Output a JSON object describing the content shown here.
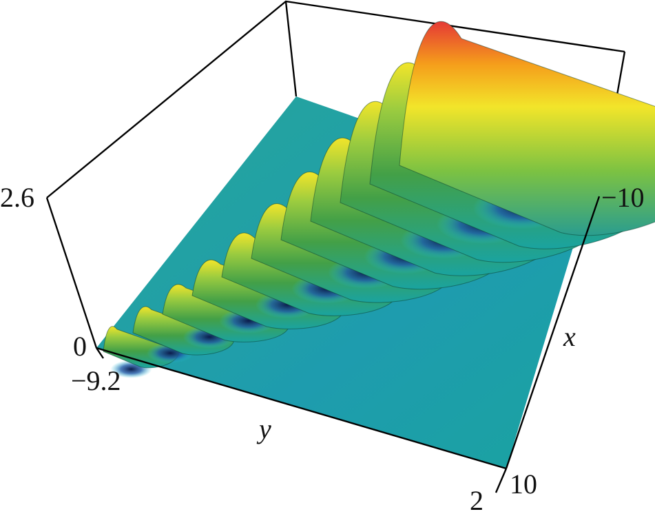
{
  "chart_data": {
    "type": "surface3d",
    "title": "",
    "axes": {
      "x": {
        "label": "x",
        "ticks": [
          "−10",
          "10"
        ],
        "range": [
          -10,
          10
        ]
      },
      "y": {
        "label": "y",
        "ticks": [
          "−9.2",
          "2"
        ],
        "range": [
          -9.2,
          2
        ]
      },
      "z": {
        "ticks": [
          "0",
          "2.6"
        ],
        "range": [
          0,
          2.6
        ]
      }
    },
    "surface": {
      "description_of_shape": "parallel wave ridges along x, amplitude growing toward y = 2",
      "peak_max": 2.6,
      "ridge_count_visible": 11,
      "colormap": [
        "#1a237e",
        "#1e88e5",
        "#26c6da",
        "#1aa3a0",
        "#43a047",
        "#9ccc3f",
        "#f2e52a",
        "#f59e1b",
        "#e53935"
      ]
    }
  },
  "labels": {
    "z_top": "2.6",
    "z_bottom": "0",
    "y_start": "−9.2",
    "y_end": "2",
    "y_name": "y",
    "x_start": "−10",
    "x_end": "10",
    "x_name": "x"
  }
}
